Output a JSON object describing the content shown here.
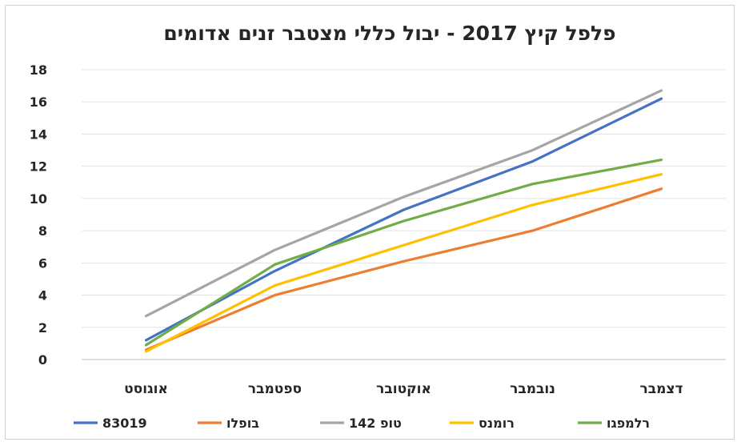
{
  "chart_data": {
    "type": "line",
    "title": "פלפל קיץ 2017 - יבול כללי מצטבר זנים אדומים",
    "xlabel": "",
    "ylabel": "",
    "ylim": [
      0,
      18
    ],
    "yticks": [
      "0",
      "2",
      "4",
      "6",
      "8",
      "10",
      "12",
      "14",
      "16",
      "18"
    ],
    "categories": [
      "אוגוסט",
      "ספטמבר",
      "אוקטובר",
      "נובמבר",
      "דצמבר"
    ],
    "grid": true,
    "legend_position": "bottom",
    "series": [
      {
        "name": "83019",
        "color": "#4472C4",
        "values": [
          1.2,
          5.5,
          9.3,
          12.3,
          16.2
        ]
      },
      {
        "name": "בופלו",
        "color": "#ED7D31",
        "values": [
          0.6,
          4.0,
          6.1,
          8.0,
          10.6
        ]
      },
      {
        "name": "טופ 142",
        "color": "#A5A5A5",
        "values": [
          2.7,
          6.8,
          10.1,
          13.0,
          16.7
        ]
      },
      {
        "name": "רומנס",
        "color": "#FFC000",
        "values": [
          0.5,
          4.6,
          7.1,
          9.6,
          11.5
        ]
      },
      {
        "name": "רלמפגו",
        "color": "#70AD47",
        "values": [
          0.9,
          5.9,
          8.6,
          10.9,
          12.4
        ]
      }
    ]
  }
}
